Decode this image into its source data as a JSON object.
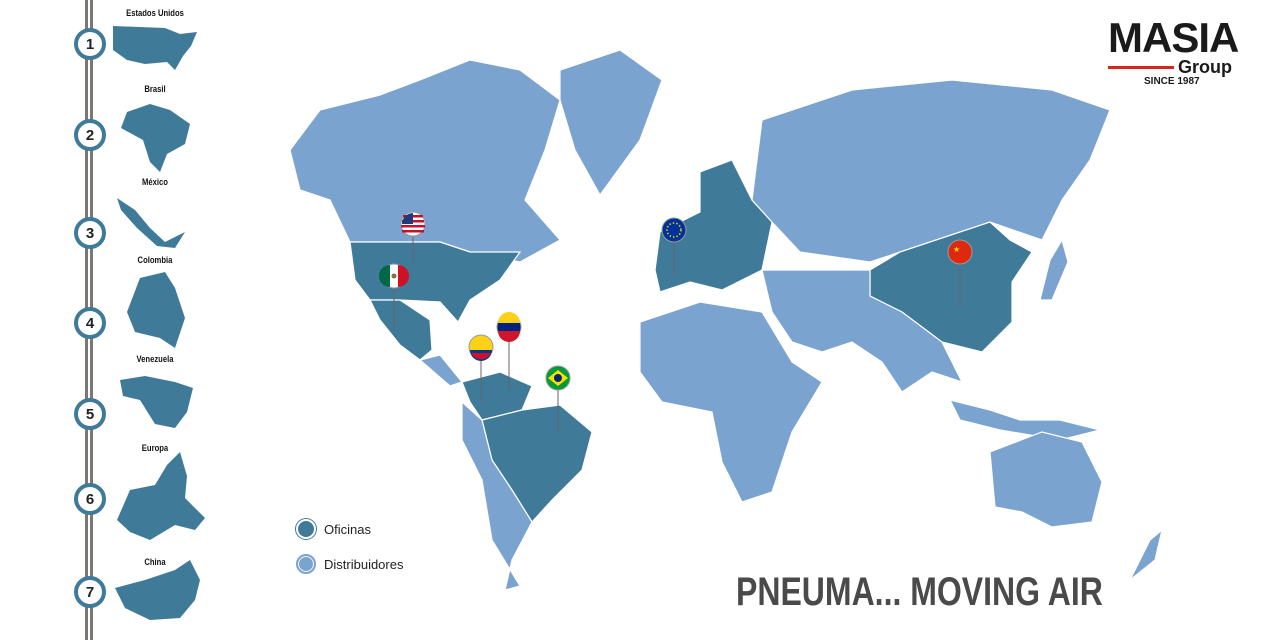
{
  "colors": {
    "office": "#3f7a99",
    "distributor": "#7ba3cf",
    "rail": "#7d7773",
    "logo_red": "#d9261c"
  },
  "logo": {
    "name": "MASIA",
    "sub": "Group",
    "since": "SINCE 1987"
  },
  "sidebar": {
    "items": [
      {
        "number": "1",
        "label": "Estados Unidos"
      },
      {
        "number": "2",
        "label": "Brasil"
      },
      {
        "number": "3",
        "label": "México"
      },
      {
        "number": "4",
        "label": "Colombia"
      },
      {
        "number": "5",
        "label": "Venezuela"
      },
      {
        "number": "6",
        "label": "Europa"
      },
      {
        "number": "7",
        "label": "China"
      }
    ]
  },
  "legend": {
    "office": "Oficinas",
    "distributor": "Distribuidores"
  },
  "pins": [
    {
      "country": "Estados Unidos",
      "flag": "us-flag-icon"
    },
    {
      "country": "México",
      "flag": "mexico-flag-icon"
    },
    {
      "country": "Colombia",
      "flag": "colombia-flag-icon"
    },
    {
      "country": "Venezuela",
      "flag": "venezuela-flag-icon"
    },
    {
      "country": "Brasil",
      "flag": "brazil-flag-icon"
    },
    {
      "country": "Europa",
      "flag": "eu-flag-icon"
    },
    {
      "country": "China",
      "flag": "china-flag-icon"
    }
  ],
  "slogan": "PNEUMA... MOVING AIR"
}
